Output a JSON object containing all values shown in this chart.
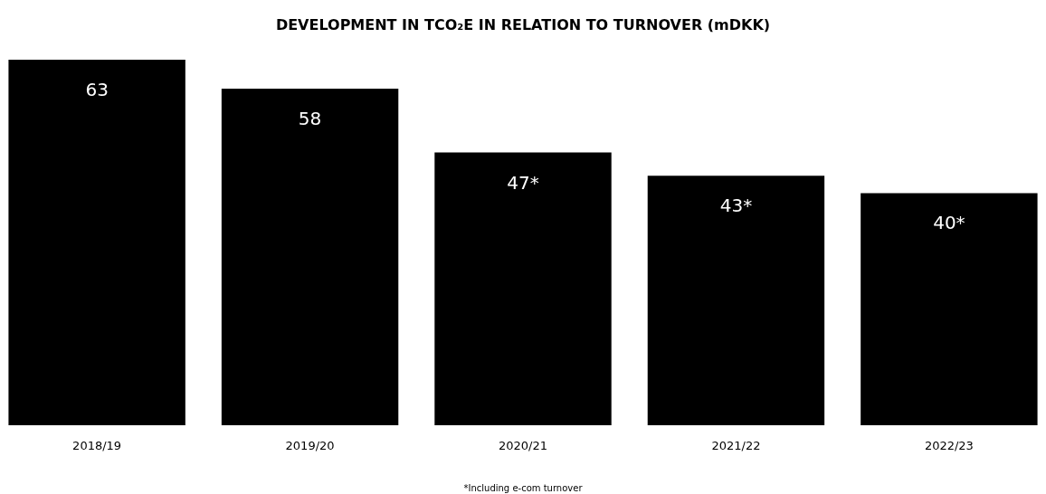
{
  "chart_data": {
    "type": "bar",
    "title": "DEVELOPMENT IN TCO₂E IN RELATION TO TURNOVER (mDKK)",
    "categories": [
      "2018/19",
      "2019/20",
      "2020/21",
      "2021/22",
      "2022/23"
    ],
    "values": [
      63,
      58,
      47,
      43,
      40
    ],
    "value_labels": [
      "63",
      "58",
      "47*",
      "43*",
      "40*"
    ],
    "color": "#000000",
    "annotations": [
      "*Including e-com turnover"
    ],
    "grid": false
  }
}
